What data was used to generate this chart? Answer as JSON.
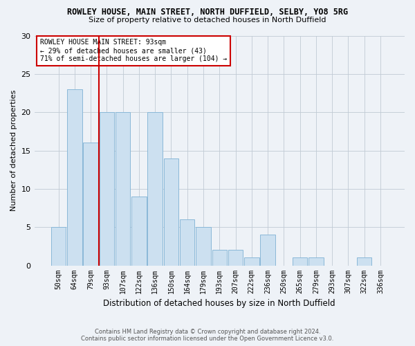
{
  "title1": "ROWLEY HOUSE, MAIN STREET, NORTH DUFFIELD, SELBY, YO8 5RG",
  "title2": "Size of property relative to detached houses in North Duffield",
  "xlabel": "Distribution of detached houses by size in North Duffield",
  "ylabel": "Number of detached properties",
  "categories": [
    "50sqm",
    "64sqm",
    "79sqm",
    "93sqm",
    "107sqm",
    "122sqm",
    "136sqm",
    "150sqm",
    "164sqm",
    "179sqm",
    "193sqm",
    "207sqm",
    "222sqm",
    "236sqm",
    "250sqm",
    "265sqm",
    "279sqm",
    "293sqm",
    "307sqm",
    "322sqm",
    "336sqm"
  ],
  "values": [
    5,
    23,
    16,
    20,
    20,
    9,
    20,
    14,
    6,
    5,
    2,
    2,
    1,
    4,
    0,
    1,
    1,
    0,
    0,
    1,
    0
  ],
  "bar_color": "#cce0f0",
  "bar_edgecolor": "#8ab8d8",
  "highlight_index": 3,
  "highlight_color": "#cc0000",
  "ylim": [
    0,
    30
  ],
  "yticks": [
    0,
    5,
    10,
    15,
    20,
    25,
    30
  ],
  "annotation_title": "ROWLEY HOUSE MAIN STREET: 93sqm",
  "annotation_line1": "← 29% of detached houses are smaller (43)",
  "annotation_line2": "71% of semi-detached houses are larger (104) →",
  "footer1": "Contains HM Land Registry data © Crown copyright and database right 2024.",
  "footer2": "Contains public sector information licensed under the Open Government Licence v3.0.",
  "background_color": "#eef2f7",
  "grid_color": "#c0cad4"
}
